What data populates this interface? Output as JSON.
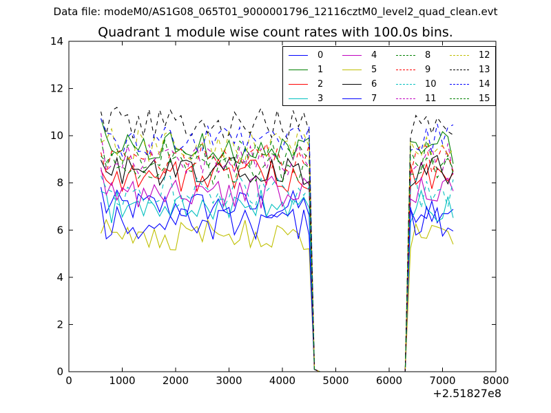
{
  "figure": {
    "suptitle": "Data file: modeM0/AS1G08_065T01_9000001796_12116cztM0_level2_quad_clean.evt",
    "title": "Quadrant 1 module wise count rates with 100.0s bins.",
    "x_offset_label": "+2.51827e8"
  },
  "chart_data": {
    "type": "line",
    "title": "Quadrant 1 module wise count rates with 100.0s bins.",
    "xlabel": "",
    "ylabel": "",
    "xlim": [
      0,
      8000
    ],
    "ylim": [
      0,
      14
    ],
    "x_offset": 251827000,
    "xticks": [
      "0",
      "1000",
      "2000",
      "3000",
      "4000",
      "5000",
      "6000",
      "7000",
      "8000"
    ],
    "yticks": [
      "0",
      "2",
      "4",
      "6",
      "8",
      "10",
      "12",
      "14"
    ],
    "grid": false,
    "legend_position": "top-right",
    "x": [
      600,
      700,
      800,
      900,
      1000,
      1100,
      1200,
      1300,
      1400,
      1500,
      1600,
      1700,
      1800,
      1900,
      2000,
      2100,
      2200,
      2300,
      2400,
      2500,
      2600,
      2700,
      2800,
      2900,
      3000,
      3100,
      3200,
      3300,
      3400,
      3500,
      3600,
      3700,
      3800,
      3900,
      4000,
      4100,
      4200,
      4300,
      4400,
      4500,
      4600,
      4700,
      4800,
      4900,
      5000,
      5100,
      5200,
      5300,
      5400,
      5500,
      5600,
      5700,
      5800,
      5900,
      6000,
      6100,
      6200,
      6300,
      6400,
      6500,
      6600,
      6700,
      6800,
      6900,
      7000,
      7100,
      7200
    ],
    "series": [
      {
        "name": "0",
        "color": "#0000ff",
        "dash": "solid",
        "level": 7.0
      },
      {
        "name": "1",
        "color": "#008000",
        "dash": "solid",
        "level": 9.5
      },
      {
        "name": "2",
        "color": "#ff0000",
        "dash": "solid",
        "level": 8.3
      },
      {
        "name": "3",
        "color": "#00bfbf",
        "dash": "solid",
        "level": 7.0
      },
      {
        "name": "4",
        "color": "#bf00bf",
        "dash": "solid",
        "level": 7.6
      },
      {
        "name": "5",
        "color": "#bfbf00",
        "dash": "solid",
        "level": 5.8
      },
      {
        "name": "6",
        "color": "#000000",
        "dash": "solid",
        "level": 8.5
      },
      {
        "name": "7",
        "color": "#0000ff",
        "dash": "solid",
        "level": 6.3
      },
      {
        "name": "8",
        "color": "#008000",
        "dash": "dashed",
        "level": 8.6
      },
      {
        "name": "9",
        "color": "#ff0000",
        "dash": "dashed",
        "level": 9.0
      },
      {
        "name": "10",
        "color": "#00bfbf",
        "dash": "dashed",
        "level": 7.6
      },
      {
        "name": "11",
        "color": "#bf00bf",
        "dash": "dashed",
        "level": 9.0
      },
      {
        "name": "12",
        "color": "#bfbf00",
        "dash": "dashed",
        "level": 9.6
      },
      {
        "name": "13",
        "color": "#000000",
        "dash": "dashed",
        "level": 10.5
      },
      {
        "name": "14",
        "color": "#0000ff",
        "dash": "dashed",
        "level": 9.8
      },
      {
        "name": "15",
        "color": "#008000",
        "dash": "dashed",
        "level": 9.2
      }
    ]
  }
}
